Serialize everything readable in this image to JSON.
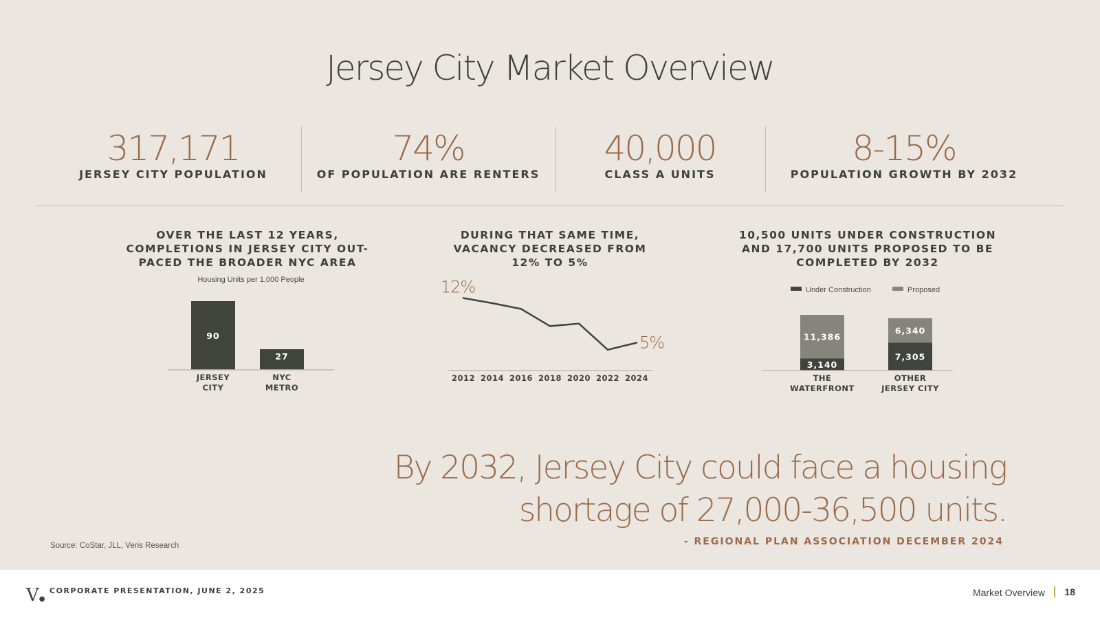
{
  "title": "Jersey City Market Overview",
  "stats": [
    {
      "value": "317,171",
      "label": "JERSEY CITY POPULATION"
    },
    {
      "value": "74%",
      "label": "OF POPULATION ARE RENTERS"
    },
    {
      "value": "40,000",
      "label": "CLASS A UNITS"
    },
    {
      "value": "8-15%",
      "label": "POPULATION GROWTH BY 2032"
    }
  ],
  "chart_headings": {
    "completions": [
      "OVER THE LAST 12 YEARS,",
      "COMPLETIONS IN JERSEY CITY OUT-",
      "PACED THE BROADER NYC AREA"
    ],
    "vacancy": [
      "DURING THAT SAME TIME,",
      "VACANCY DECREASED FROM",
      "12% TO 5%"
    ],
    "pipeline": [
      "10,500 UNITS UNDER CONSTRUCTION",
      "AND 17,700 UNITS PROPOSED TO BE",
      "COMPLETED BY 2032"
    ]
  },
  "chart_data": [
    {
      "type": "bar",
      "title": "Housing Units per 1,000 People",
      "categories": [
        [
          "JERSEY",
          "CITY"
        ],
        [
          "NYC",
          "METRO"
        ]
      ],
      "values": [
        90,
        27
      ],
      "value_labels": [
        "90",
        "27"
      ],
      "ylim": [
        0,
        90
      ],
      "color": "#41443d"
    },
    {
      "type": "line",
      "x": [
        2012,
        2014,
        2016,
        2018,
        2020,
        2022,
        2024
      ],
      "x_labels": [
        "2012",
        "2014",
        "2016",
        "2018",
        "2020",
        "2022",
        "2024"
      ],
      "y": [
        12,
        11.2,
        10.3,
        7.6,
        8.0,
        3.9,
        5.0
      ],
      "ylim": [
        0,
        14
      ],
      "start_label": "12%",
      "end_label": "5%",
      "color": "#41443d"
    },
    {
      "type": "bar",
      "stacked": true,
      "categories": [
        [
          "THE",
          "WATERFRONT"
        ],
        [
          "OTHER",
          "JERSEY CITY"
        ]
      ],
      "series": [
        {
          "name": "Under Construction",
          "values": [
            3140,
            7305
          ],
          "labels": [
            "3,140",
            "7,305"
          ],
          "color": "#41443d"
        },
        {
          "name": "Proposed",
          "values": [
            11386,
            6340
          ],
          "labels": [
            "11,386",
            "6,340"
          ],
          "color": "#86857b"
        }
      ],
      "legend": "top",
      "ylim": [
        0,
        14526
      ]
    }
  ],
  "quote": {
    "text": "By 2032, Jersey City could face a housing shortage of 27,000-36,500 units.",
    "attribution": "- REGIONAL PLAN ASSOCIATION DECEMBER 2024"
  },
  "source": "Source: CoStar, JLL, Veris Research",
  "footer": {
    "logo": "V",
    "presentation": "CORPORATE PRESENTATION, JUNE 2, 2025",
    "section": "Market Overview",
    "page": "18"
  }
}
